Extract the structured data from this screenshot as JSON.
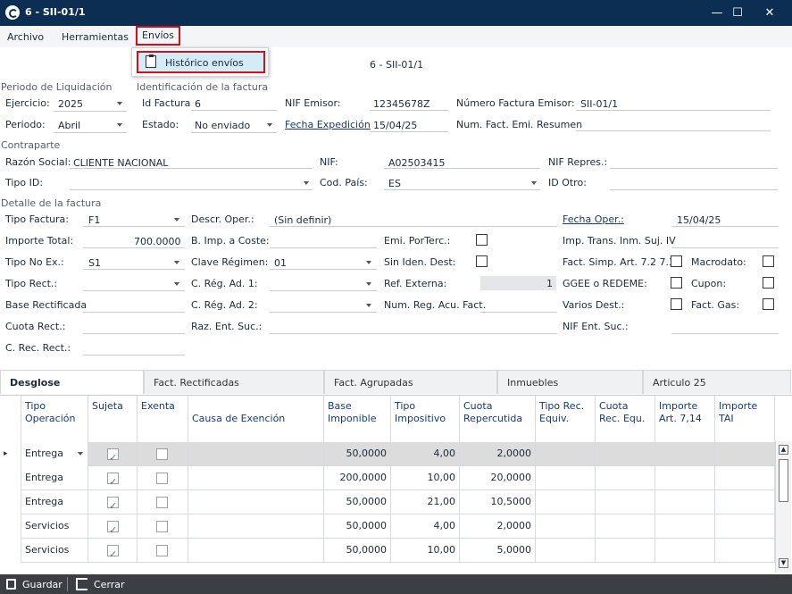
{
  "window": {
    "title": "6 - SII-01/1",
    "minimize": "—",
    "maximize": "☐",
    "close": "✕"
  },
  "menubar": {
    "items": [
      "Archivo",
      "Herramientas",
      "Envíos"
    ]
  },
  "dropdown": {
    "item": "Histórico envíos",
    "icon": "clipboard-icon"
  },
  "header": {
    "caption": "6 - SII-01/1"
  },
  "periodo": {
    "section": "Periodo de Liquidación",
    "ejercicio_label": "Ejercicio:",
    "ejercicio_value": "2025",
    "periodo_label": "Periodo:",
    "periodo_value": "Abril"
  },
  "identificacion": {
    "section": "Identificación de la factura",
    "id_label": "Id Factura",
    "id_value": "6",
    "nif_emisor_label": "NIF Emisor:",
    "nif_emisor_value": "12345678Z",
    "num_factura_label": "Número Factura Emisor:",
    "num_factura_value": "SII-01/1",
    "estado_label": "Estado:",
    "estado_value": "No enviado",
    "fecha_exp_label": "Fecha Expedición",
    "fecha_exp_value": "15/04/25",
    "num_fact_resumen_label": "Num. Fact. Emi. Resumen"
  },
  "contraparte": {
    "section": "Contraparte",
    "razon_label": "Razón Social:",
    "razon_value": "CLIENTE NACIONAL",
    "nif_label": "NIF:",
    "nif_value": "A02503415",
    "nif_repres_label": "NIF Repres.:",
    "tipo_id_label": "Tipo ID:",
    "cod_pais_label": "Cod. País:",
    "cod_pais_value": "ES",
    "id_otro_label": "ID Otro:"
  },
  "detalle": {
    "section": "Detalle de la factura",
    "tipo_factura_label": "Tipo Factura:",
    "tipo_factura_value": "F1",
    "descr_oper_label": "Descr. Oper.:",
    "descr_oper_value": "(Sin definir)",
    "fecha_oper_label": "Fecha Oper.:",
    "fecha_oper_value": "15/04/25",
    "importe_total_label": "Importe Total:",
    "importe_total_value": "700.0000",
    "b_imp_coste_label": "B. Imp. a Coste:",
    "emi_porterc_label": "Emi. PorTerc.:",
    "imp_trans_label": "Imp. Trans. Inm. Suj. IV",
    "tipo_no_ex_label": "Tipo No Ex.:",
    "tipo_no_ex_value": "S1",
    "clave_regimen_label": "Clave Régimen:",
    "clave_regimen_value": "01",
    "sin_iden_label": "Sin Iden. Dest:",
    "fact_simp_label": "Fact. Simp. Art. 7.2 7.3",
    "macrodato_label": "Macrodato:",
    "tipo_rect_label": "Tipo Rect.:",
    "c_reg_ad1_label": "C. Rég. Ad. 1:",
    "ref_externa_label": "Ref. Externa:",
    "ref_externa_value": "1",
    "ggee_label": "GGEE o REDEME:",
    "cupon_label": "Cupon:",
    "base_rect_label": "Base Rectificada",
    "c_reg_ad2_label": "C. Rég. Ad. 2:",
    "num_reg_label": "Num. Reg. Acu. Fact.",
    "varios_dest_label": "Varios Dest.:",
    "fact_gas_label": "Fact. Gas:",
    "cuota_rect_label": "Cuota Rect.:",
    "raz_ent_label": "Raz. Ent. Suc.:",
    "nif_ent_label": "NIF Ent. Suc.:",
    "c_rec_rect_label": "C. Rec. Rect.:"
  },
  "tabs": [
    "Desglose",
    "Fact. Rectificadas",
    "Fact. Agrupadas",
    "Inmuebles",
    "Articulo 25"
  ],
  "grid": {
    "headers": [
      "Tipo Operación",
      "Sujeta",
      "Exenta",
      "Causa de Exención",
      "Base Imponible",
      "Tipo Impositivo",
      "Cuota Repercutida",
      "Tipo Rec. Equiv.",
      "Cuota Rec. Equ.",
      "Importe Art. 7,14",
      "Importe TAI"
    ],
    "rows": [
      {
        "tipo": "Entrega",
        "sujeta": true,
        "exenta": false,
        "base": "50,0000",
        "tipo_imp": "4,00",
        "cuota": "2,0000"
      },
      {
        "tipo": "Entrega",
        "sujeta": true,
        "exenta": false,
        "base": "200,0000",
        "tipo_imp": "10,00",
        "cuota": "20,0000"
      },
      {
        "tipo": "Entrega",
        "sujeta": true,
        "exenta": false,
        "base": "50,0000",
        "tipo_imp": "21,00",
        "cuota": "10,5000"
      },
      {
        "tipo": "Servicios",
        "sujeta": true,
        "exenta": false,
        "base": "50,0000",
        "tipo_imp": "4,00",
        "cuota": "2,0000"
      },
      {
        "tipo": "Servicios",
        "sujeta": true,
        "exenta": false,
        "base": "50,0000",
        "tipo_imp": "10,00",
        "cuota": "5,0000"
      }
    ]
  },
  "bottombar": {
    "guardar": "Guardar",
    "cerrar": "Cerrar"
  }
}
